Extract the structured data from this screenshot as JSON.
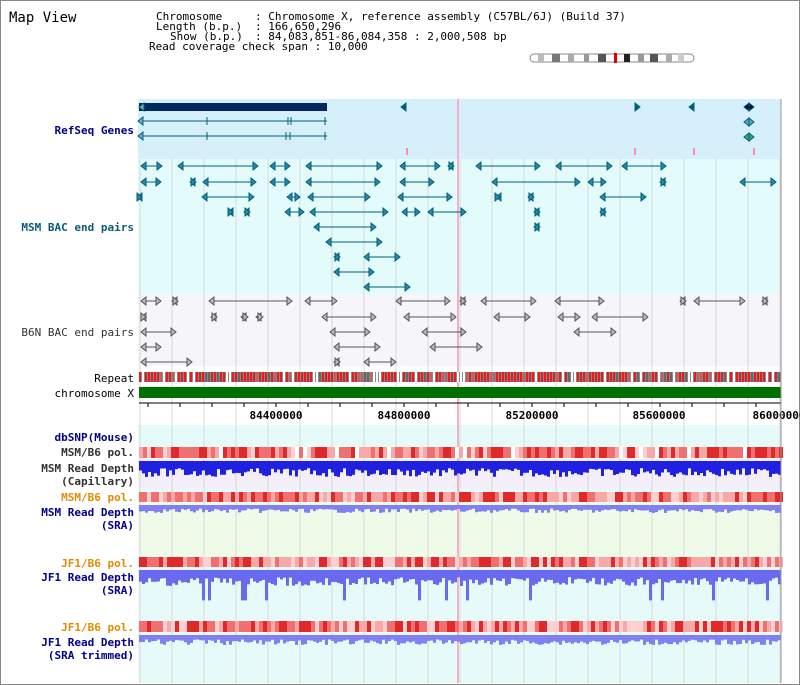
{
  "title": "Map View",
  "info": {
    "chromosome_label": "Chromosome",
    "chromosome_value": "Chromosome X, reference assembly (C57BL/6J) (Build 37)",
    "length_label": "Length (b.p.)",
    "length_value": "166,650,296",
    "show_label": "Show (b.p.)",
    "show_value": "84,083,851-86,084,358 : 2,000,508 bp",
    "span_label": "Read coverage check span",
    "span_value": "10,000"
  },
  "tracks": {
    "refseq": "RefSeq Genes",
    "msm_bac": "MSM BAC end pairs",
    "b6n_bac": "B6N BAC end pairs",
    "repeat": "Repeat",
    "chromosome": "chromosome X",
    "dbsnp": "dbSNP(Mouse)",
    "msm_b6_pol_1": "MSM/B6 pol.",
    "msm_read_depth_cap_1": "MSM Read Depth",
    "msm_read_depth_cap_2": "(Capillary)",
    "msm_b6_pol_2": "MSM/B6 pol.",
    "msm_read_depth_sra_1": "MSM Read Depth",
    "msm_read_depth_sra_2": "(SRA)",
    "jf1_b6_pol_1": "JF1/B6 pol.",
    "jf1_read_depth_sra_1": "JF1 Read Depth",
    "jf1_read_depth_sra_2": "(SRA)",
    "jf1_b6_pol_2": "JF1/B6 pol.",
    "jf1_read_depth_trim_1": "JF1 Read Depth",
    "jf1_read_depth_trim_2": "(SRA trimmed)"
  },
  "axis": {
    "ticks": [
      "84400000",
      "84800000",
      "85200000",
      "85600000",
      "86000000"
    ]
  },
  "colors": {
    "refseq_bg": "#d6f0fb",
    "msm_bg": "#e4fbfb",
    "depth_bg": "#e6fafa",
    "gene_line": "#00607a",
    "bac_line": "#555555",
    "chromosome": "#007000",
    "pol_red": "#e63030",
    "depth_blue": "#2020e0",
    "depth_light": "#7a7af0"
  },
  "icons": {
    "chromosome_ideogram": "chromosome-ideogram-icon"
  }
}
